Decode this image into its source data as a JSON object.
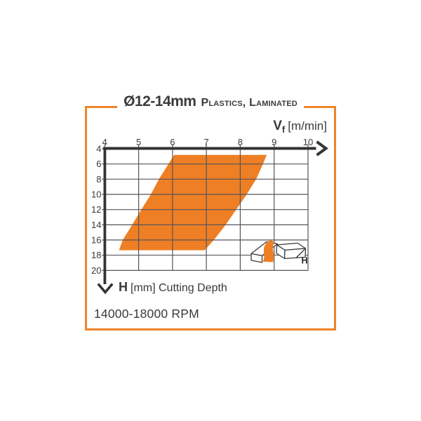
{
  "header": {
    "diameter": "Ø12-14mm",
    "material": "Plastics, Laminated"
  },
  "x_axis": {
    "label_v": "V",
    "label_sub": "f",
    "label_unit": "[m/min]"
  },
  "y_axis": {
    "label_h": "H",
    "label_unit": "[mm] Cutting Depth"
  },
  "footer": {
    "rpm": "14000-18000 RPM"
  },
  "icon": {
    "h_label": "H"
  },
  "colors": {
    "accent": "#ee7f24",
    "border": "#ef8329",
    "ink": "#3a3a3c",
    "grid": "#55555a"
  },
  "chart_data": {
    "type": "area",
    "title": "Ø12-14mm Plastics, Laminated",
    "xlabel": "Vf [m/min]",
    "ylabel": "H [mm] Cutting Depth",
    "xlim": [
      4,
      10
    ],
    "ylim": [
      4,
      20
    ],
    "y_inverted": true,
    "grid": true,
    "x_ticks": [
      4,
      5,
      6,
      7,
      8,
      9,
      10
    ],
    "y_ticks": [
      4,
      6,
      8,
      10,
      12,
      14,
      16,
      18,
      20
    ],
    "band_color": "#ee7f24",
    "band": {
      "h": [
        4.8,
        6,
        8,
        10,
        12,
        14,
        16,
        17.35
      ],
      "vf_min": [
        6.05,
        5.88,
        5.6,
        5.36,
        5.08,
        4.81,
        4.53,
        4.42
      ],
      "vf_max": [
        8.78,
        8.67,
        8.47,
        8.19,
        7.88,
        7.57,
        7.22,
        6.95
      ]
    },
    "annotations": [
      "14000-18000 RPM"
    ]
  }
}
